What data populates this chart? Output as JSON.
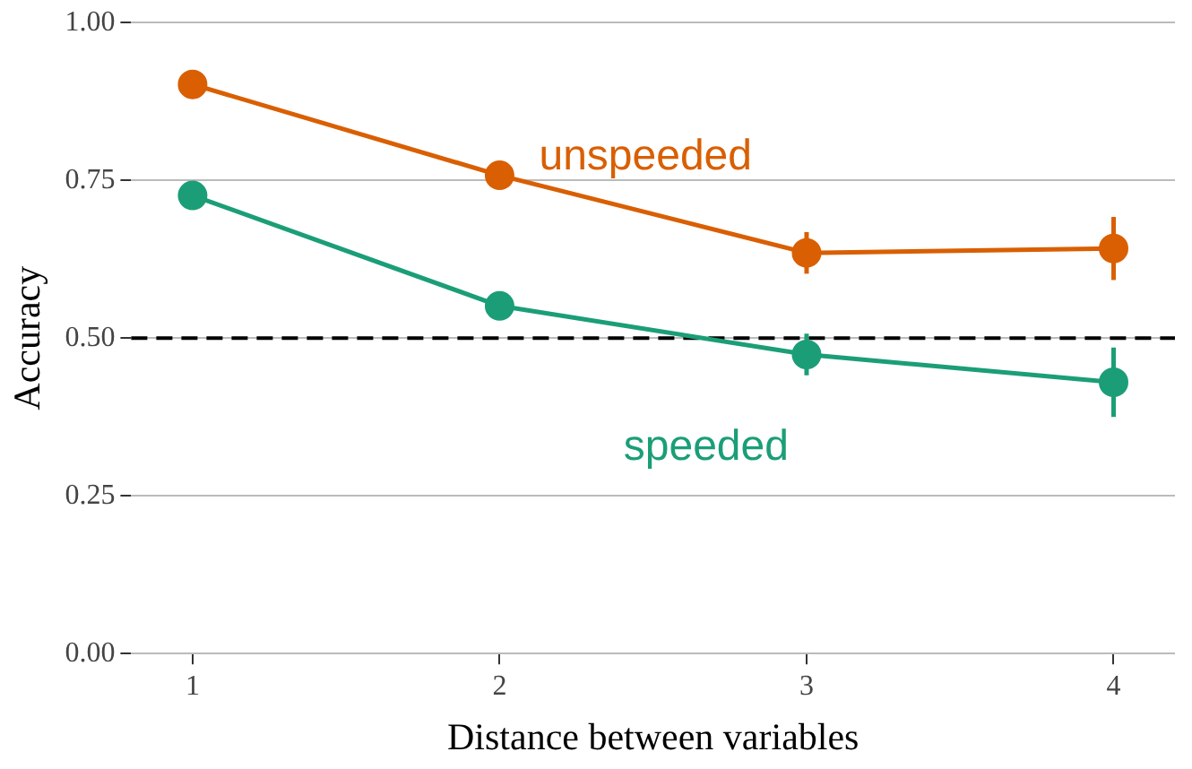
{
  "chart_data": {
    "type": "line",
    "xlabel": "Distance between variables",
    "ylabel": "Accuracy",
    "x": [
      1,
      2,
      3,
      4
    ],
    "xlim": [
      0.8,
      4.2
    ],
    "xticks": [
      1,
      2,
      3,
      4
    ],
    "ylim": [
      0,
      1
    ],
    "yticks": [
      {
        "value": 0,
        "label": "0.00"
      },
      {
        "value": 0.25,
        "label": "0.25"
      },
      {
        "value": 0.5,
        "label": "0.50"
      },
      {
        "value": 0.75,
        "label": "0.75"
      },
      {
        "value": 1,
        "label": "1.00"
      }
    ],
    "series": [
      {
        "name": "unspeeded",
        "color": "#d95f02",
        "values": [
          0.902,
          0.758,
          0.635,
          0.642
        ],
        "errors": [
          null,
          null,
          0.033,
          0.05
        ]
      },
      {
        "name": "speeded",
        "color": "#1b9e77",
        "values": [
          0.726,
          0.551,
          0.474,
          0.43
        ],
        "errors": [
          null,
          0.022,
          0.033,
          0.055
        ]
      }
    ],
    "ref_lines": [
      {
        "axis": "y",
        "value": 0.5,
        "color": "#000000",
        "line_style": "dashed"
      }
    ],
    "grid": "y",
    "legend": false,
    "marker": "circle",
    "line_style": "solid"
  }
}
